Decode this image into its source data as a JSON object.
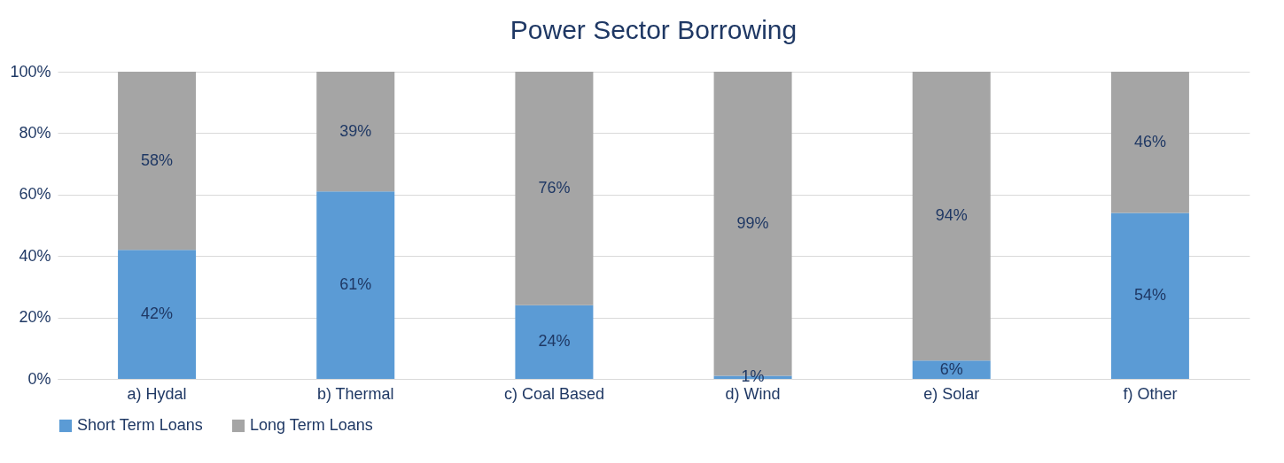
{
  "chart_data": {
    "type": "bar",
    "title": "Power Sector Borrowing",
    "stacked": true,
    "categories": [
      "a) Hydal",
      "b) Thermal",
      "c) Coal Based",
      "d) Wind",
      "e) Solar",
      "f) Other"
    ],
    "series": [
      {
        "name": "Short Term Loans",
        "color": "#5b9bd5",
        "values": [
          42,
          61,
          24,
          1,
          6,
          54
        ],
        "value_labels": [
          "42%",
          "61%",
          "24%",
          "1%",
          "6%",
          "54%"
        ]
      },
      {
        "name": "Long Term Loans",
        "color": "#a5a5a5",
        "values": [
          58,
          39,
          76,
          99,
          94,
          46
        ],
        "value_labels": [
          "58%",
          "39%",
          "76%",
          "99%",
          "94%",
          "46%"
        ]
      }
    ],
    "ylim": [
      0,
      100
    ],
    "yticks": [
      {
        "value": 0,
        "label": "0%"
      },
      {
        "value": 20,
        "label": "20%"
      },
      {
        "value": 40,
        "label": "40%"
      },
      {
        "value": 60,
        "label": "60%"
      },
      {
        "value": 80,
        "label": "80%"
      },
      {
        "value": 100,
        "label": "100%"
      }
    ],
    "grid": "y",
    "legend": "bottom"
  }
}
